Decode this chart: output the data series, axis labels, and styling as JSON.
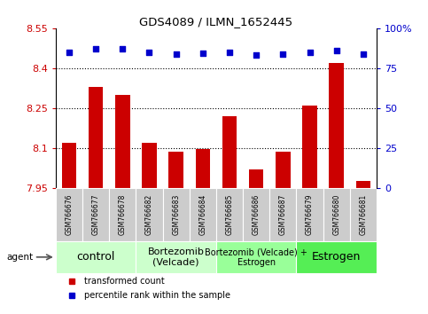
{
  "title": "GDS4089 / ILMN_1652445",
  "samples": [
    "GSM766676",
    "GSM766677",
    "GSM766678",
    "GSM766682",
    "GSM766683",
    "GSM766684",
    "GSM766685",
    "GSM766686",
    "GSM766687",
    "GSM766679",
    "GSM766680",
    "GSM766681"
  ],
  "bar_values": [
    8.12,
    8.33,
    8.3,
    8.12,
    8.085,
    8.095,
    8.22,
    8.02,
    8.085,
    8.26,
    8.42,
    7.975
  ],
  "percentile_pct": [
    85,
    87,
    87,
    85,
    84,
    84.5,
    85,
    83.5,
    84,
    85,
    86,
    84
  ],
  "ylim_left": [
    7.95,
    8.55
  ],
  "yticks_left": [
    7.95,
    8.1,
    8.25,
    8.4,
    8.55
  ],
  "ytick_labels_left": [
    "7.95",
    "8.1",
    "8.25",
    "8.4",
    "8.55"
  ],
  "ylim_right": [
    0,
    100
  ],
  "yticks_right": [
    0,
    25,
    50,
    75,
    100
  ],
  "ytick_labels_right": [
    "0",
    "25",
    "50",
    "75",
    "100%"
  ],
  "bar_color": "#cc0000",
  "percentile_color": "#0000cc",
  "groups": [
    {
      "label": "control",
      "start": 0,
      "end": 3,
      "color": "#ccffcc",
      "fontsize": 9
    },
    {
      "label": "Bortezomib\n(Velcade)",
      "start": 3,
      "end": 6,
      "color": "#ccffcc",
      "fontsize": 8
    },
    {
      "label": "Bortezomib (Velcade) +\nEstrogen",
      "start": 6,
      "end": 9,
      "color": "#99ff99",
      "fontsize": 7
    },
    {
      "label": "Estrogen",
      "start": 9,
      "end": 12,
      "color": "#55ee55",
      "fontsize": 9
    }
  ],
  "agent_label": "agent",
  "legend_bar_label": "transformed count",
  "legend_pct_label": "percentile rank within the sample",
  "tick_label_color_left": "#cc0000",
  "tick_label_color_right": "#0000cc",
  "sample_box_color": "#cccccc",
  "agent_arrow_color": "#555555"
}
